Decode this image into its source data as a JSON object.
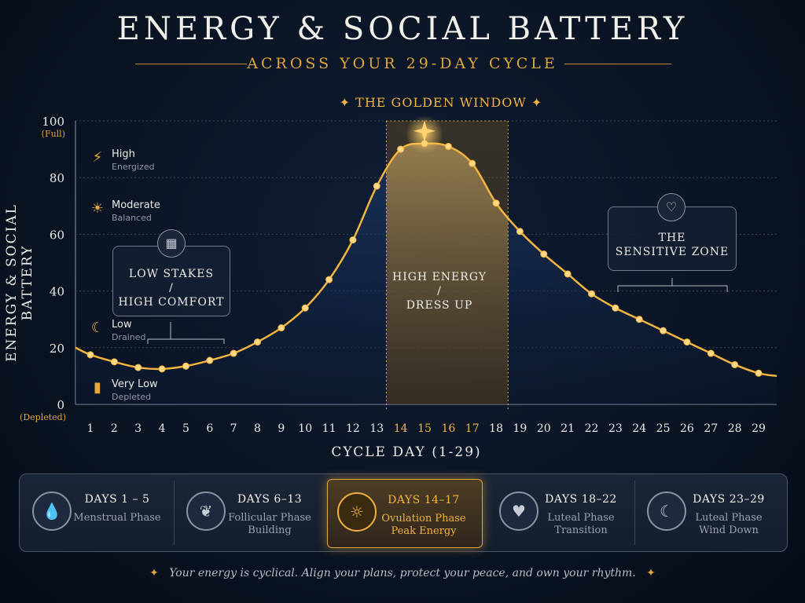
{
  "title": "ENERGY & SOCIAL BATTERY",
  "subtitle": "ACROSS YOUR 29-DAY CYCLE",
  "chart_data": {
    "type": "line",
    "xlabel": "CYCLE DAY (1-29)",
    "ylabel": "ENERGY & SOCIAL BATTERY",
    "x": [
      1,
      2,
      3,
      4,
      5,
      6,
      7,
      8,
      9,
      10,
      11,
      12,
      13,
      14,
      15,
      16,
      17,
      18,
      19,
      20,
      21,
      22,
      23,
      24,
      25,
      26,
      27,
      28,
      29
    ],
    "values": [
      17.5,
      15,
      13,
      12.5,
      13.5,
      15.5,
      18,
      22,
      27,
      34,
      44,
      58,
      77,
      90,
      92,
      91,
      85,
      71,
      61,
      53,
      46,
      39,
      34,
      30,
      26,
      22,
      18,
      14,
      11
    ],
    "ylim": [
      0,
      100
    ],
    "y_ticks": [
      "0",
      "20",
      "40",
      "60",
      "80",
      "100"
    ],
    "y_tick_subs": {
      "top": "(Full)",
      "bottom": "(Depleted)"
    },
    "highlight_days": [
      14,
      15,
      16,
      17
    ],
    "grid": true,
    "accent": "#f3b43f"
  },
  "legend": [
    {
      "icon": "lightning-icon",
      "label": "High",
      "desc": "Energized"
    },
    {
      "icon": "sun-icon",
      "label": "Moderate",
      "desc": "Balanced"
    },
    {
      "icon": "moon-icon",
      "label": "Low",
      "desc": "Drained"
    },
    {
      "icon": "battery-icon",
      "label": "Very Low",
      "desc": "Depleted"
    }
  ],
  "annotations": {
    "golden_window": "THE GOLDEN WINDOW",
    "low_stakes": {
      "line1": "LOW STAKES",
      "line2": "/",
      "line3": "HIGH COMFORT"
    },
    "high_energy": {
      "line1": "HIGH ENERGY",
      "line2": "/",
      "line3": "DRESS UP"
    },
    "sensitive": {
      "line1": "THE",
      "line2": "SENSITIVE ZONE"
    }
  },
  "phases": [
    {
      "icon": "drop-icon",
      "days": "DAYS 1 – 5",
      "name": "Menstrual Phase",
      "sub": ""
    },
    {
      "icon": "sprout-icon",
      "days": "DAYS 6–13",
      "name": "Follicular Phase",
      "sub": "Building"
    },
    {
      "icon": "sun-icon",
      "days": "DAYS 14–17",
      "name": "Ovulation Phase",
      "sub": "Peak Energy"
    },
    {
      "icon": "shield-heart-icon",
      "days": "DAYS 18–22",
      "name": "Luteal Phase",
      "sub": "Transition"
    },
    {
      "icon": "moon-icon",
      "days": "DAYS 23–29",
      "name": "Luteal Phase",
      "sub": "Wind Down"
    }
  ],
  "footer": "Your energy is cyclical. Align your plans, protect your peace, and own your rhythm."
}
